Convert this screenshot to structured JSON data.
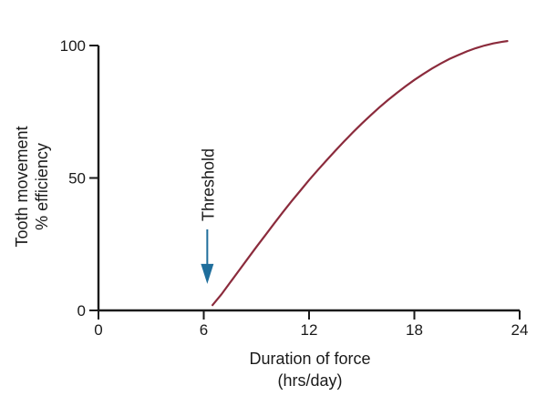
{
  "chart_data": {
    "type": "line",
    "title": "",
    "xlabel": [
      "Duration of force",
      "(hrs/day)"
    ],
    "ylabel": [
      "Tooth movement",
      "% efficiency"
    ],
    "xlim": [
      0,
      24
    ],
    "ylim": [
      0,
      100
    ],
    "x_ticks": [
      0,
      6,
      12,
      18,
      24
    ],
    "y_ticks": [
      0,
      50,
      100
    ],
    "grid": false,
    "legend": "none",
    "series": [
      {
        "color": "#8b2b3c",
        "points": [
          [
            6.5,
            2
          ],
          [
            7,
            6
          ],
          [
            7.5,
            10.5
          ],
          [
            8,
            15
          ],
          [
            8.5,
            19.5
          ],
          [
            9,
            24
          ],
          [
            9.5,
            28.3
          ],
          [
            10,
            32.7
          ],
          [
            10.5,
            37
          ],
          [
            11,
            41.2
          ],
          [
            11.5,
            45.2
          ],
          [
            12,
            49.2
          ],
          [
            12.5,
            53
          ],
          [
            13,
            56.7
          ],
          [
            13.5,
            60.3
          ],
          [
            14,
            63.8
          ],
          [
            14.5,
            67.2
          ],
          [
            15,
            70.5
          ],
          [
            15.5,
            73.6
          ],
          [
            16,
            76.6
          ],
          [
            16.5,
            79.4
          ],
          [
            17,
            82.1
          ],
          [
            17.5,
            84.6
          ],
          [
            18,
            87
          ],
          [
            18.5,
            89.2
          ],
          [
            19,
            91.3
          ],
          [
            19.5,
            93.2
          ],
          [
            20,
            94.9
          ],
          [
            20.5,
            96.4
          ],
          [
            21,
            97.8
          ],
          [
            21.5,
            99
          ],
          [
            22,
            100
          ],
          [
            22.5,
            100.8
          ],
          [
            23,
            101.4
          ],
          [
            23.3,
            101.7
          ]
        ]
      }
    ],
    "annotations": [
      {
        "text": "Threshold",
        "x": 6.2,
        "arrow_tip_y": 10,
        "arrow_color": "#1f6e9c"
      }
    ]
  }
}
